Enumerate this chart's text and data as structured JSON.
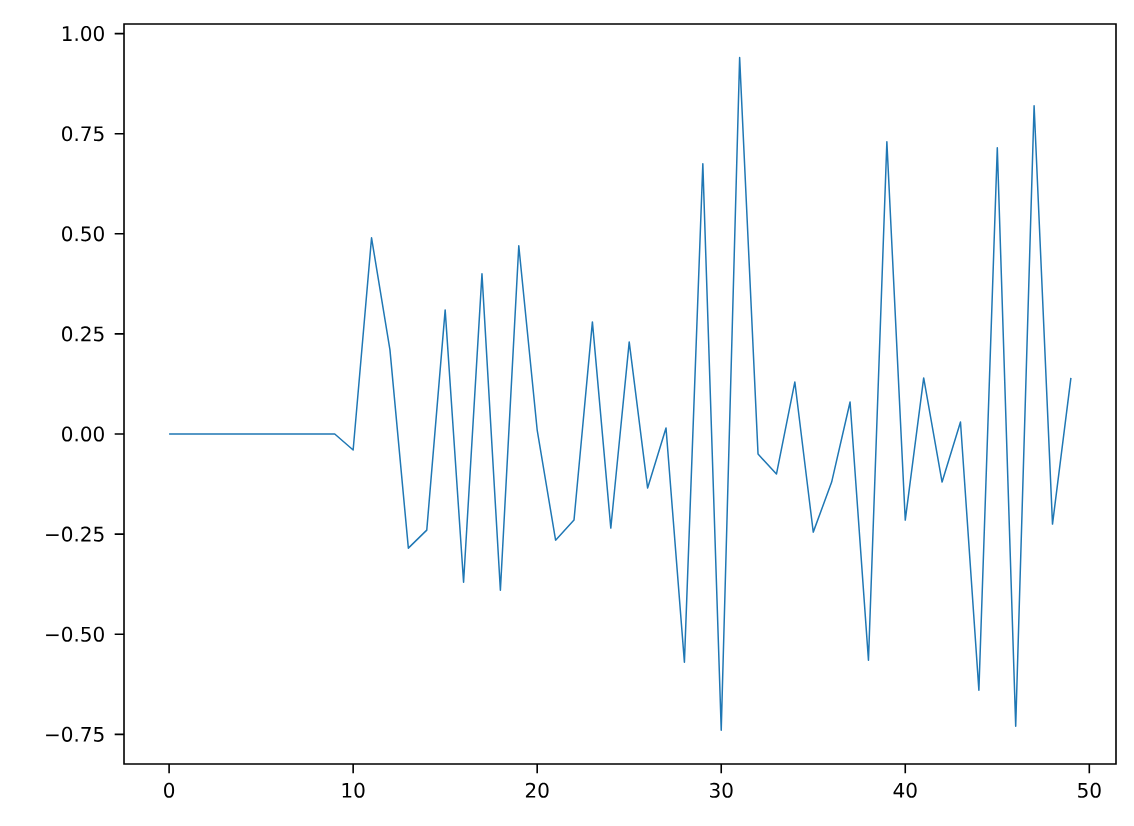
{
  "chart_data": {
    "type": "line",
    "x": [
      0,
      1,
      2,
      3,
      4,
      5,
      6,
      7,
      8,
      9,
      10,
      11,
      12,
      13,
      14,
      15,
      16,
      17,
      18,
      19,
      20,
      21,
      22,
      23,
      24,
      25,
      26,
      27,
      28,
      29,
      30,
      31,
      32,
      33,
      34,
      35,
      36,
      37,
      38,
      39,
      40,
      41,
      42,
      43,
      44,
      45,
      46,
      47,
      48,
      49
    ],
    "series": [
      {
        "color": "#1f77b4",
        "values": [
          0,
          0,
          0,
          0,
          0,
          0,
          0,
          0,
          0,
          0,
          -0.04,
          0.49,
          0.21,
          -0.285,
          -0.24,
          0.31,
          -0.37,
          0.4,
          -0.39,
          0.47,
          0.01,
          -0.265,
          -0.215,
          0.28,
          -0.235,
          0.23,
          -0.135,
          0.015,
          -0.57,
          0.675,
          -0.74,
          0.94,
          -0.05,
          -0.1,
          0.13,
          -0.245,
          -0.12,
          0.08,
          -0.565,
          0.73,
          -0.215,
          0.14,
          -0.12,
          0.03,
          -0.64,
          0.715,
          -0.73,
          0.82,
          -0.225,
          0.14
        ]
      }
    ],
    "xlim": [
      -2.45,
      51.45
    ],
    "ylim": [
      -0.824,
      1.024
    ],
    "xticks": [
      0,
      10,
      20,
      30,
      40,
      50
    ],
    "yticks": [
      {
        "value": -0.75,
        "label": "−0.75"
      },
      {
        "value": -0.5,
        "label": "−0.50"
      },
      {
        "value": -0.25,
        "label": "−0.25"
      },
      {
        "value": 0,
        "label": "0.00"
      },
      {
        "value": 0.25,
        "label": "0.25"
      },
      {
        "value": 0.5,
        "label": "0.50"
      },
      {
        "value": 0.75,
        "label": "0.75"
      },
      {
        "value": 1,
        "label": "1.00"
      }
    ],
    "grid": false
  }
}
